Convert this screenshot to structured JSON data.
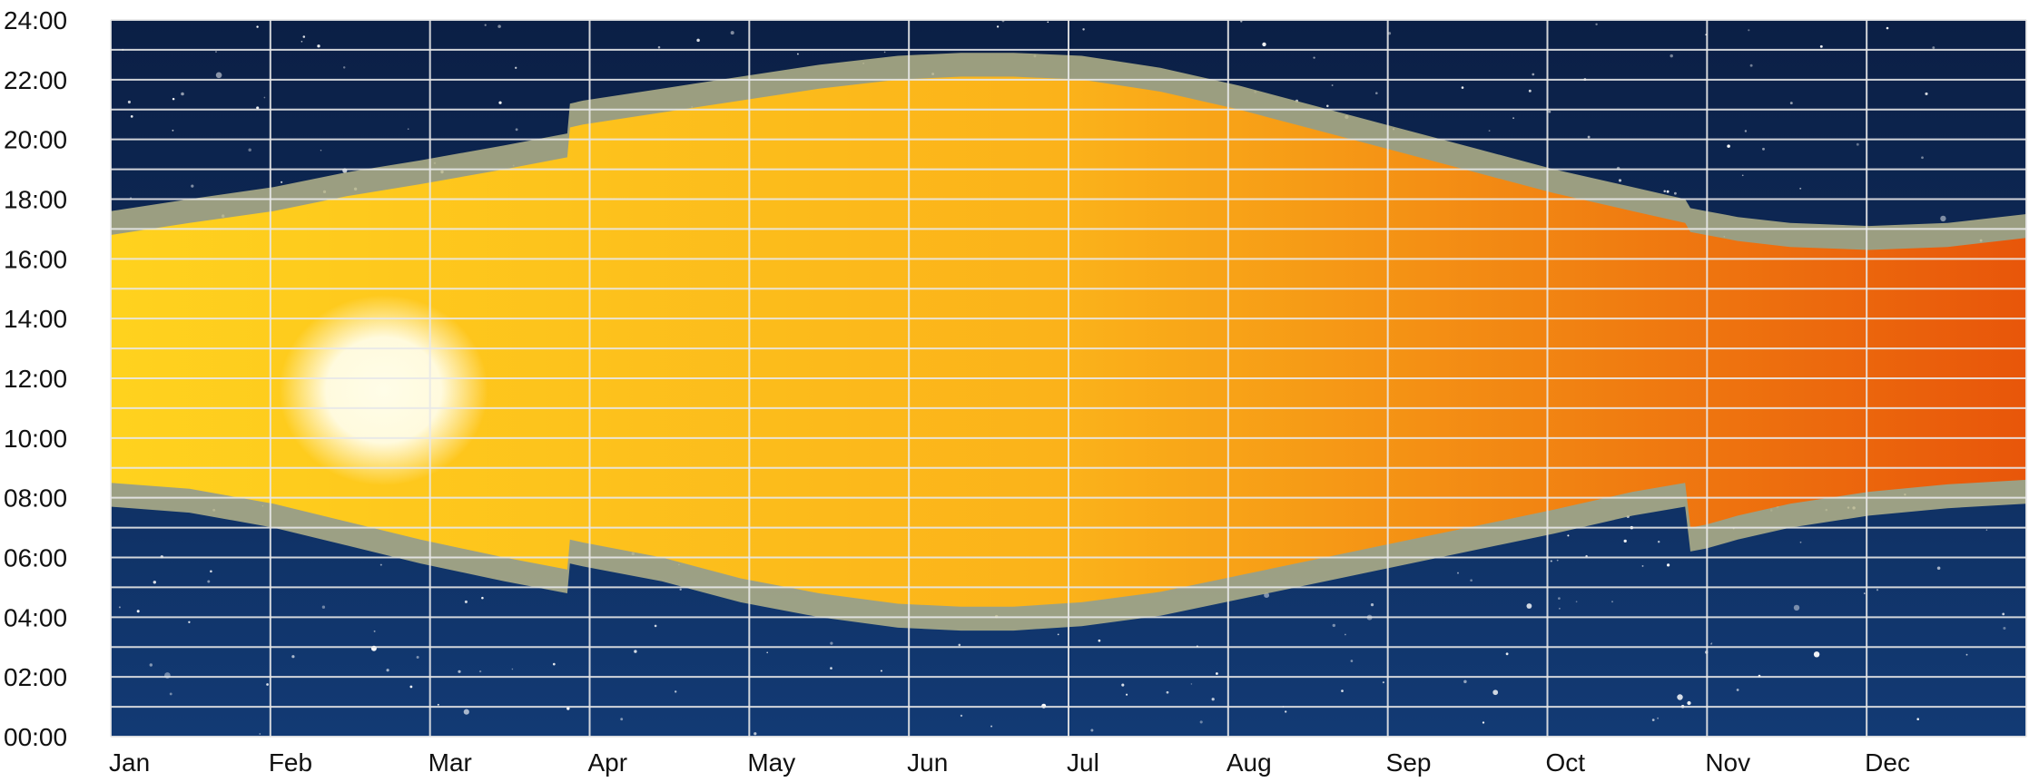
{
  "chart_data": {
    "type": "area",
    "title": "",
    "xlabel": "",
    "ylabel": "",
    "grid": true,
    "legend": "none",
    "categories": [
      "Jan",
      "Feb",
      "Mar",
      "Apr",
      "May",
      "Jun",
      "Jul",
      "Aug",
      "Sep",
      "Oct",
      "Nov",
      "Dec"
    ],
    "y_ticks": [
      "00:00",
      "02:00",
      "04:00",
      "06:00",
      "08:00",
      "10:00",
      "12:00",
      "14:00",
      "16:00",
      "18:00",
      "20:00",
      "22:00",
      "24:00"
    ],
    "ylim": [
      0,
      24
    ],
    "xlim": [
      0,
      365
    ],
    "series": [
      {
        "x": [
          0,
          15,
          31,
          45,
          59,
          75,
          87,
          87.5,
          90,
          105,
          120,
          135,
          150,
          162,
          172,
          185,
          200,
          215,
          230,
          245,
          260,
          275,
          290,
          300,
          301,
          304,
          310,
          320,
          335,
          350,
          365
        ],
        "sunrise": [
          8.5,
          8.3,
          7.8,
          7.2,
          6.6,
          6.0,
          5.6,
          6.6,
          6.5,
          6.0,
          5.3,
          4.8,
          4.45,
          4.35,
          4.35,
          4.5,
          4.85,
          5.4,
          5.95,
          6.5,
          7.05,
          7.6,
          8.2,
          8.5,
          7.0,
          7.1,
          7.4,
          7.8,
          8.2,
          8.45,
          8.6
        ],
        "sunset": [
          16.8,
          17.2,
          17.6,
          18.1,
          18.5,
          19.0,
          19.4,
          20.4,
          20.5,
          20.9,
          21.3,
          21.7,
          22.0,
          22.1,
          22.1,
          22.0,
          21.6,
          21.0,
          20.3,
          19.6,
          18.9,
          18.2,
          17.6,
          17.2,
          16.9,
          16.8,
          16.6,
          16.4,
          16.3,
          16.4,
          16.7
        ]
      }
    ],
    "colors": {
      "night_sky_top": "#0b1f45",
      "night_sky_bottom": "#123a74",
      "day_left": "#ffd21e",
      "day_mid": "#fbb21a",
      "day_right": "#e8560a",
      "twilight_band": "#b5b48a",
      "sun": "#fffde8",
      "grid": "#e8e8e8",
      "axis_text": "#111111"
    }
  }
}
